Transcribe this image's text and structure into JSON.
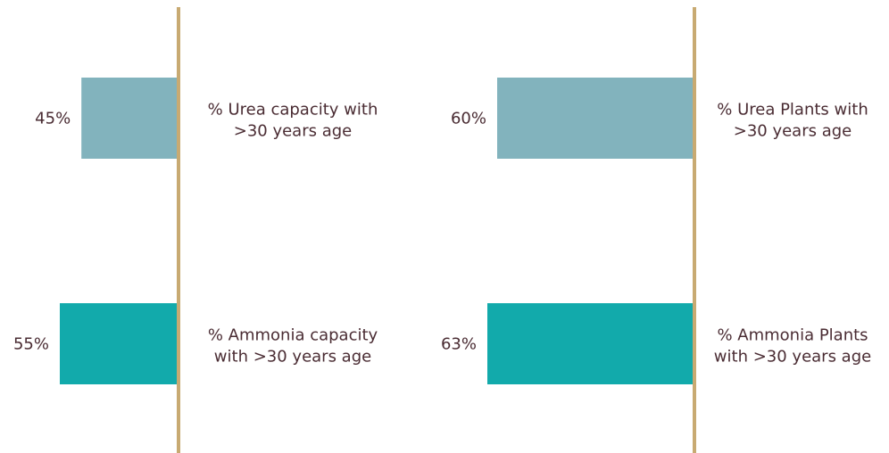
{
  "chart_data": [
    {
      "type": "bar",
      "orientation": "horizontal",
      "categories": [
        [
          "% Urea capacity with",
          ">30 years age"
        ],
        [
          "% Ammonia capacity",
          "with >30 years age"
        ]
      ],
      "values": [
        45,
        55
      ],
      "value_labels": [
        "45%",
        "55%"
      ],
      "colors": [
        "#82b3bd",
        "#12aaab"
      ],
      "axis_color": "#c8aa72"
    },
    {
      "type": "bar",
      "orientation": "horizontal",
      "categories": [
        [
          "% Urea Plants with",
          ">30 years age"
        ],
        [
          "% Ammonia Plants",
          "with >30 years age"
        ]
      ],
      "values": [
        60,
        63
      ],
      "value_labels": [
        "60%",
        "63%"
      ],
      "colors": [
        "#82b3bd",
        "#12aaab"
      ],
      "axis_color": "#c8aa72"
    }
  ]
}
